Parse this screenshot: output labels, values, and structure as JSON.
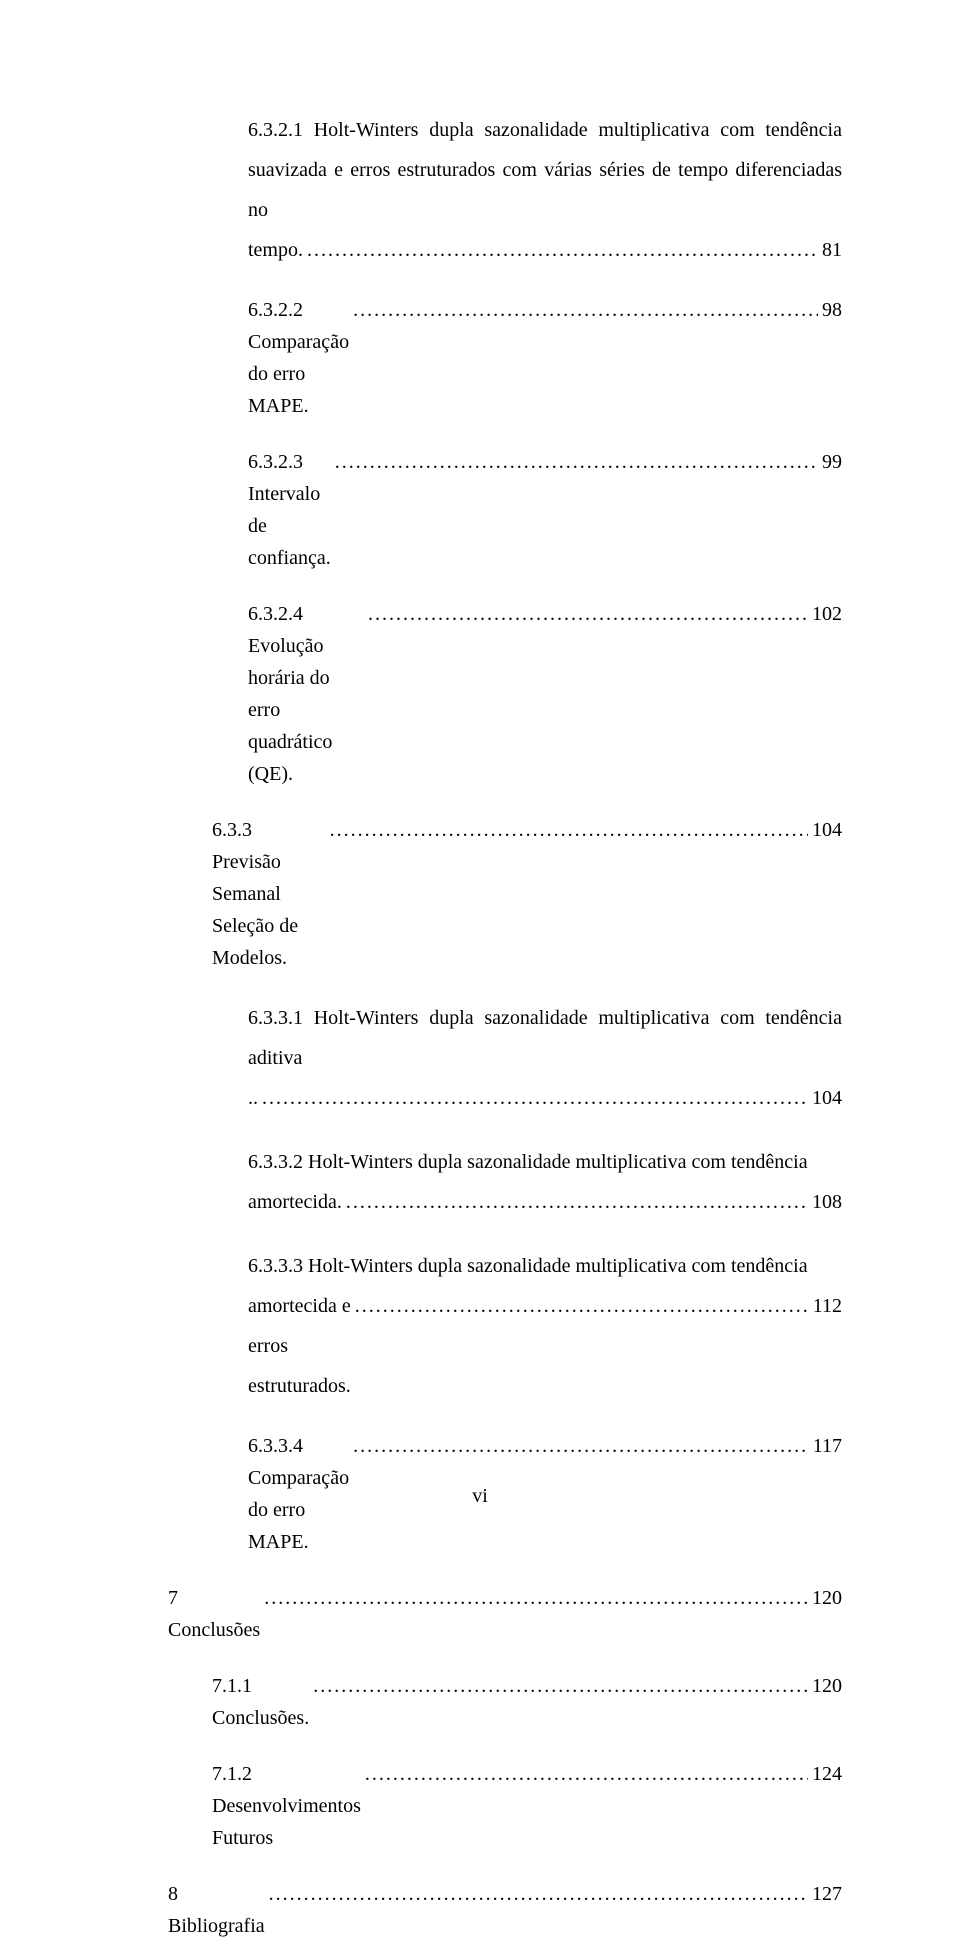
{
  "leader": "......................................................................................................................................................................................................................",
  "entries": [
    {
      "type": "multiline",
      "indent": 2,
      "lead": "6.3.2.1 Holt-Winters dupla sazonalidade multiplicativa com tendência suavizada e erros estruturados com várias séries de tempo diferenciadas no",
      "lastTitle": "tempo.",
      "page": "81"
    },
    {
      "type": "single",
      "indent": 2,
      "title": "6.3.2.2 Comparação do erro MAPE.",
      "page": "98"
    },
    {
      "type": "single",
      "indent": 2,
      "title": "6.3.2.3 Intervalo de confiança.",
      "page": "99"
    },
    {
      "type": "single",
      "indent": 2,
      "title": "6.3.2.4 Evolução horária do erro quadrático (QE).",
      "page": "102"
    },
    {
      "type": "single",
      "indent": 1,
      "title": "6.3.3    Previsão Semanal Seleção de Modelos.",
      "page": "104"
    },
    {
      "type": "multiline",
      "indent": 2,
      "lead": "6.3.3.1 Holt-Winters dupla sazonalidade multiplicativa com tendência aditiva",
      "lastTitle": "..",
      "page": "104"
    },
    {
      "type": "multiline",
      "indent": 2,
      "lead": "6.3.3.2 Holt-Winters dupla sazonalidade multiplicativa com tendência",
      "lastTitle": "amortecida.",
      "page": "108"
    },
    {
      "type": "multiline",
      "indent": 2,
      "lead": "6.3.3.3 Holt-Winters dupla sazonalidade multiplicativa com tendência",
      "lastTitle": "amortecida e erros estruturados.",
      "page": "112"
    },
    {
      "type": "single",
      "indent": 2,
      "title": "6.3.3.4 Comparação do erro MAPE.",
      "page": "117"
    },
    {
      "type": "single",
      "indent": 0,
      "title": "7   Conclusões",
      "page": "120"
    },
    {
      "type": "single",
      "indent": 1,
      "title": "7.1.1    Conclusões.",
      "page": "120"
    },
    {
      "type": "single",
      "indent": 1,
      "title": "7.1.2    Desenvolvimentos Futuros",
      "page": "124"
    },
    {
      "type": "single",
      "indent": 0,
      "title": "8   Bibliografia",
      "page": "127"
    }
  ],
  "footer": "vi"
}
